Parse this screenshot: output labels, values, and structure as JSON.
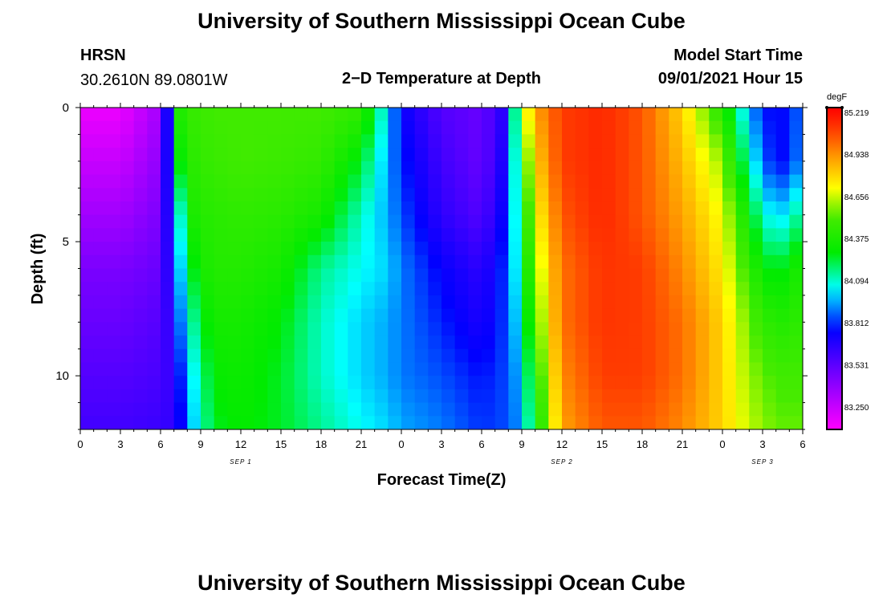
{
  "header": {
    "title": "University of Southern Mississippi Ocean Cube",
    "station": "HRSN",
    "coords": "30.2610N  89.0801W",
    "plot_title": "2−D Temperature at Depth",
    "model_label": "Model Start Time",
    "model_time": "09/01/2021 Hour 15"
  },
  "footer": {
    "title": "University of Southern Mississippi Ocean Cube"
  },
  "chart_data": {
    "type": "heatmap",
    "title": "2−D Temperature at Depth",
    "xlabel": "Forecast Time(Z)",
    "ylabel": "Depth (ft)",
    "x_unit": "hours since start of axis",
    "x_range": [
      0,
      54
    ],
    "x_tick_values": [
      0,
      3,
      6,
      9,
      12,
      15,
      18,
      21,
      24,
      27,
      30,
      33,
      36,
      39,
      42,
      45,
      48,
      51,
      54
    ],
    "x_tick_labels": [
      "0",
      "3",
      "6",
      "9",
      "12",
      "15",
      "18",
      "21",
      "0",
      "3",
      "6",
      "9",
      "12",
      "15",
      "18",
      "21",
      "0",
      "3",
      "6"
    ],
    "date_labels": [
      {
        "text": "SEP 1",
        "x": 12
      },
      {
        "text": "SEP 2",
        "x": 36
      },
      {
        "text": "SEP 3",
        "x": 51
      }
    ],
    "y_range": [
      0,
      12
    ],
    "y_inverted": true,
    "y_tick_values": [
      0,
      5,
      10
    ],
    "y_tick_labels": [
      "0",
      "5",
      "10"
    ],
    "colorbar": {
      "unit": "degF",
      "min": 83.1,
      "max": 85.25,
      "labels": [
        "85.219",
        "84.938",
        "84.656",
        "84.375",
        "84.094",
        "83.812",
        "83.531",
        "83.250"
      ],
      "label_values": [
        85.219,
        84.938,
        84.656,
        84.375,
        84.094,
        83.812,
        83.531,
        83.25
      ]
    },
    "grid": false,
    "depths": [
      0,
      2,
      4,
      6,
      8,
      10,
      12
    ],
    "times": [
      0,
      3,
      6,
      7,
      7.5,
      8,
      9,
      10,
      12,
      15,
      18,
      21,
      23,
      24,
      27,
      30,
      32,
      33,
      34,
      36,
      39,
      42,
      45,
      48,
      50,
      51,
      52,
      53,
      54
    ],
    "values": [
      [
        83.15,
        83.15,
        83.35,
        84.05,
        84.4,
        84.45,
        84.48,
        84.5,
        84.5,
        84.5,
        84.5,
        84.45,
        84.0,
        83.75,
        83.55,
        83.5,
        83.7,
        84.6,
        84.9,
        85.1,
        85.15,
        85.05,
        84.8,
        84.4,
        83.95,
        83.8,
        83.75,
        83.8,
        83.9
      ],
      [
        83.25,
        83.25,
        83.4,
        84.0,
        84.3,
        84.4,
        84.45,
        84.47,
        84.5,
        84.48,
        84.45,
        84.25,
        83.95,
        83.8,
        83.6,
        83.5,
        83.75,
        84.4,
        84.8,
        85.1,
        85.15,
        85.05,
        84.85,
        84.6,
        84.1,
        83.9,
        83.75,
        83.8,
        83.95
      ],
      [
        83.35,
        83.35,
        83.45,
        83.9,
        84.1,
        84.35,
        84.4,
        84.42,
        84.44,
        84.42,
        84.35,
        84.1,
        83.95,
        83.85,
        83.65,
        83.55,
        83.8,
        84.3,
        84.7,
        85.05,
        85.15,
        85.05,
        84.9,
        84.7,
        84.3,
        84.1,
        84.0,
        84.05,
        84.2
      ],
      [
        83.45,
        83.45,
        83.5,
        83.8,
        84.0,
        84.2,
        84.35,
        84.4,
        84.4,
        84.35,
        84.15,
        84.05,
        84.0,
        83.9,
        83.75,
        83.65,
        83.85,
        84.2,
        84.6,
        85.0,
        85.12,
        85.1,
        84.95,
        84.75,
        84.45,
        84.3,
        84.25,
        84.3,
        84.4
      ],
      [
        83.5,
        83.5,
        83.55,
        83.7,
        83.9,
        84.05,
        84.25,
        84.35,
        84.35,
        84.28,
        84.1,
        84.0,
        83.95,
        83.9,
        83.8,
        83.7,
        83.85,
        84.1,
        84.5,
        85.0,
        85.12,
        85.1,
        85.0,
        84.8,
        84.55,
        84.45,
        84.4,
        84.4,
        84.45
      ],
      [
        83.55,
        83.55,
        83.58,
        83.65,
        83.8,
        83.95,
        84.15,
        84.3,
        84.32,
        84.25,
        84.1,
        84.0,
        83.95,
        83.9,
        83.85,
        83.78,
        83.85,
        84.0,
        84.4,
        84.95,
        85.1,
        85.1,
        85.0,
        84.8,
        84.6,
        84.55,
        84.5,
        84.5,
        84.5
      ],
      [
        83.6,
        83.6,
        83.62,
        83.65,
        83.75,
        83.9,
        84.1,
        84.25,
        84.3,
        84.25,
        84.15,
        84.05,
        84.0,
        83.95,
        83.9,
        83.82,
        83.85,
        83.95,
        84.3,
        84.9,
        85.05,
        85.05,
        84.95,
        84.8,
        84.65,
        84.6,
        84.55,
        84.55,
        84.55
      ]
    ]
  }
}
